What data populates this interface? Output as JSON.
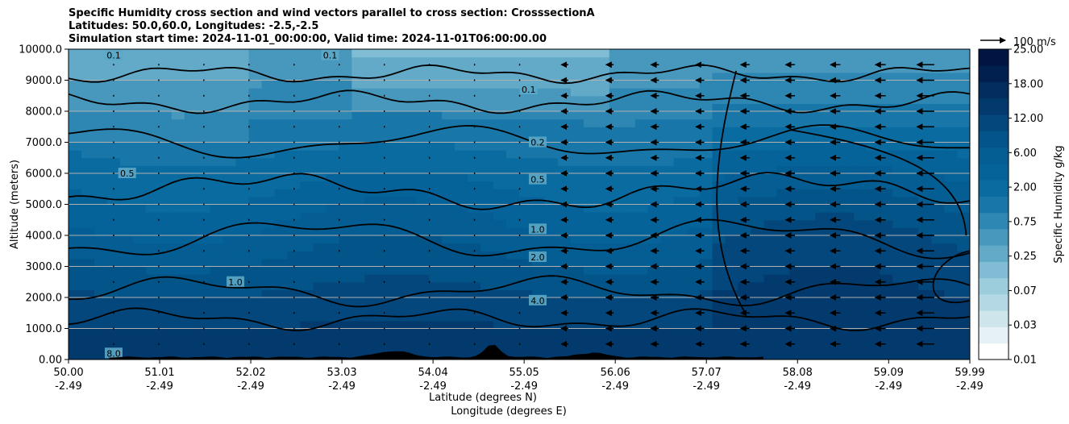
{
  "title_lines": [
    "Specific Humidity cross section and wind vectors parallel to cross section: CrosssectionA",
    "Latitudes: 50.0,60.0, Longitudes: -2.5,-2.5",
    "Simulation start time: 2024-11-01_00:00:00, Valid time: 2024-11-01T06:00:00.00"
  ],
  "chart_data": {
    "type": "heatmap",
    "xlabel_lines": [
      "Latitude (degrees N)",
      "Longitude (degrees E)"
    ],
    "ylabel": "Altitude (meters)",
    "x_ticks": [
      {
        "lat": "50.00",
        "lon": "-2.49"
      },
      {
        "lat": "51.01",
        "lon": "-2.49"
      },
      {
        "lat": "52.02",
        "lon": "-2.49"
      },
      {
        "lat": "53.03",
        "lon": "-2.49"
      },
      {
        "lat": "54.04",
        "lon": "-2.49"
      },
      {
        "lat": "55.05",
        "lon": "-2.49"
      },
      {
        "lat": "56.06",
        "lon": "-2.49"
      },
      {
        "lat": "57.07",
        "lon": "-2.49"
      },
      {
        "lat": "58.08",
        "lon": "-2.49"
      },
      {
        "lat": "59.09",
        "lon": "-2.49"
      },
      {
        "lat": "59.99",
        "lon": "-2.49"
      }
    ],
    "xlim": [
      50.0,
      59.99
    ],
    "ylim": [
      0,
      10000
    ],
    "y_ticks": [
      "0.00",
      "1000.0",
      "2000.0",
      "3000.0",
      "4000.0",
      "5000.0",
      "6000.0",
      "7000.0",
      "8000.0",
      "9000.0",
      "10000.0"
    ],
    "y_tick_values": [
      0,
      1000,
      2000,
      3000,
      4000,
      5000,
      6000,
      7000,
      8000,
      9000,
      10000
    ],
    "grid": "horizontal",
    "colorbar": {
      "label": "Specific Humidity g/kg",
      "levels": [
        "0.01",
        "0.03",
        "0.07",
        "0.25",
        "0.75",
        "2.00",
        "6.00",
        "12.00",
        "18.00",
        "25.00"
      ],
      "colors": [
        "#ffffff",
        "#e5f1f5",
        "#cfe5ec",
        "#b4d9e4",
        "#9ccddc",
        "#80bdd4",
        "#62aac8",
        "#4898be",
        "#2e86b2",
        "#1877a8",
        "#0a6ba0",
        "#06639a",
        "#045d93",
        "#035488",
        "#03477c",
        "#023a6d",
        "#022d5e",
        "#01204f",
        "#001542"
      ]
    },
    "quiver_key": {
      "label": "100 m/s"
    },
    "contour_labels": [
      "0.1",
      "0.2",
      "0.5",
      "1.0",
      "2.0",
      "4.0",
      "8.0"
    ],
    "vector_grid": {
      "lat_step": 0.5,
      "alt_step": 500
    },
    "wind_description": "near-zero wind south of 55 N; southward (left-pointing) parallel wind north of 55 N, strongest near 59.5-60 N"
  }
}
